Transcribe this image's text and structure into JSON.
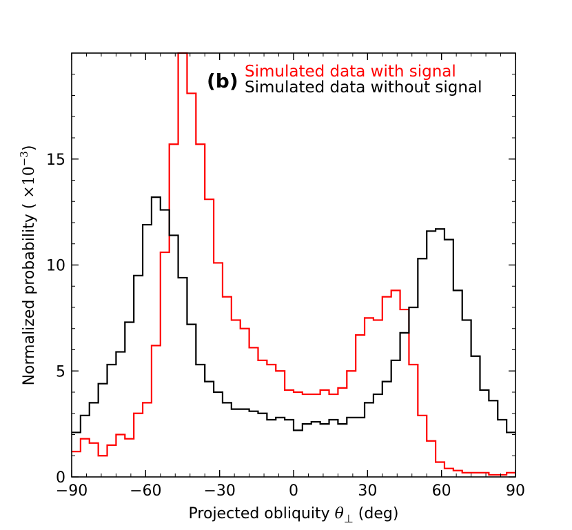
{
  "chart_data": {
    "type": "histogram-step",
    "panel_label": "(b)",
    "xlabel": "Projected obliquity θ⊥ (deg)",
    "xlabel_main": "Projected obliquity ",
    "xlabel_symbol": "θ",
    "xlabel_sub": "⊥",
    "xlabel_unit": " (deg)",
    "ylabel": "Normalized probability ( ×10−3)",
    "ylabel_main": "Normalized probability ( ",
    "ylabel_times": "×10",
    "ylabel_exp": "−3",
    "ylabel_close": ")",
    "xlim": [
      -90,
      90
    ],
    "ylim": [
      0,
      20
    ],
    "xticks": [
      -90,
      -60,
      -30,
      0,
      30,
      60,
      90
    ],
    "xtick_labels": [
      "−90",
      "−60",
      "−30",
      "0",
      "30",
      "60",
      "90"
    ],
    "yticks": [
      0,
      5,
      10,
      15
    ],
    "ytick_labels": [
      "0",
      "5",
      "10",
      "15"
    ],
    "bin_edges": [
      -90,
      -86.4,
      -82.8,
      -79.2,
      -75.6,
      -72,
      -68.4,
      -64.8,
      -61.2,
      -57.6,
      -54,
      -50.4,
      -46.8,
      -43.2,
      -39.6,
      -36,
      -32.4,
      -28.8,
      -25.2,
      -21.6,
      -18,
      -14.4,
      -10.8,
      -7.2,
      -3.6,
      0,
      3.6,
      7.2,
      10.8,
      14.4,
      18,
      21.6,
      25.2,
      28.8,
      32.4,
      36,
      39.6,
      43.2,
      46.8,
      50.4,
      54,
      57.6,
      61.2,
      64.8,
      68.4,
      72,
      75.6,
      79.2,
      82.8,
      86.4,
      90
    ],
    "series": [
      {
        "name": "Simulated data with signal",
        "color": "#ff0000",
        "values": [
          1.2,
          1.8,
          1.6,
          1.0,
          1.5,
          2.0,
          1.8,
          3.0,
          3.5,
          6.2,
          10.6,
          15.7,
          20.5,
          18.1,
          15.7,
          13.1,
          10.1,
          8.5,
          7.4,
          7.0,
          6.1,
          5.5,
          5.3,
          5.0,
          4.1,
          4.0,
          3.9,
          3.9,
          4.1,
          3.9,
          4.2,
          5.0,
          6.7,
          7.5,
          7.4,
          8.5,
          8.8,
          7.9,
          5.3,
          2.9,
          1.7,
          0.7,
          0.4,
          0.3,
          0.2,
          0.2,
          0.2,
          0.1,
          0.1,
          0.2
        ]
      },
      {
        "name": "Simulated data without signal",
        "color": "#000000",
        "values": [
          2.1,
          2.9,
          3.5,
          4.4,
          5.3,
          5.9,
          7.3,
          9.5,
          11.9,
          13.2,
          12.6,
          11.4,
          9.4,
          7.2,
          5.3,
          4.5,
          4.0,
          3.5,
          3.2,
          3.2,
          3.1,
          3.0,
          2.7,
          2.8,
          2.7,
          2.2,
          2.5,
          2.6,
          2.5,
          2.7,
          2.5,
          2.8,
          2.8,
          3.5,
          3.9,
          4.5,
          5.5,
          6.8,
          8.0,
          10.3,
          11.6,
          11.7,
          11.2,
          8.8,
          7.4,
          5.7,
          4.1,
          3.6,
          2.7,
          2.1
        ]
      }
    ],
    "legend_placement": "top-right"
  }
}
